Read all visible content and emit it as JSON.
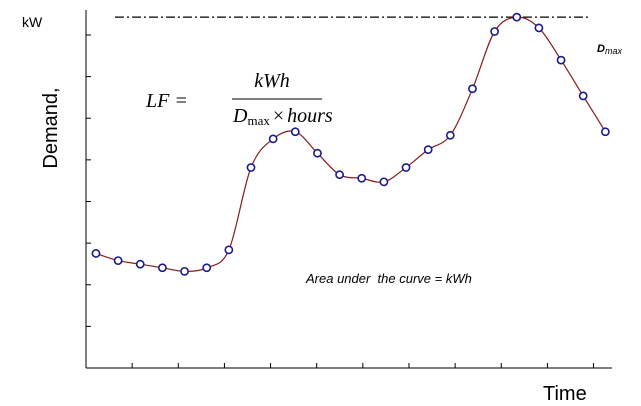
{
  "chart_data": {
    "type": "line",
    "ylabel_unit": "kW",
    "ylabel": "Demand,",
    "xlabel": "Time",
    "x": [
      1,
      2,
      3,
      4,
      5,
      6,
      7,
      8,
      9,
      10,
      11,
      12,
      13,
      14,
      15,
      16,
      17,
      18,
      19,
      20,
      21,
      22,
      23,
      24
    ],
    "values": [
      2.6,
      2.4,
      2.3,
      2.2,
      2.1,
      2.2,
      2.7,
      5.0,
      5.8,
      6.0,
      5.4,
      4.8,
      4.7,
      4.6,
      5.0,
      5.5,
      5.9,
      7.2,
      8.8,
      9.2,
      8.9,
      8.0,
      7.0,
      6.0
    ],
    "xlim": [
      0.55,
      24.3
    ],
    "ylim": [
      -0.6,
      9.4
    ],
    "dmax_value": 9.2,
    "dmax_label_main": "D",
    "dmax_label_sub": "max",
    "formula": {
      "lhs": "LF =",
      "numerator": "kWh",
      "denom_main": "D",
      "denom_sub": "max",
      "denom_times": "×",
      "denom_hours": "hours"
    },
    "annotation": "Area under  the curve = kWh",
    "line_color": "#8b1a1a",
    "marker_edge": "#1a1a8c",
    "grid": false
  }
}
